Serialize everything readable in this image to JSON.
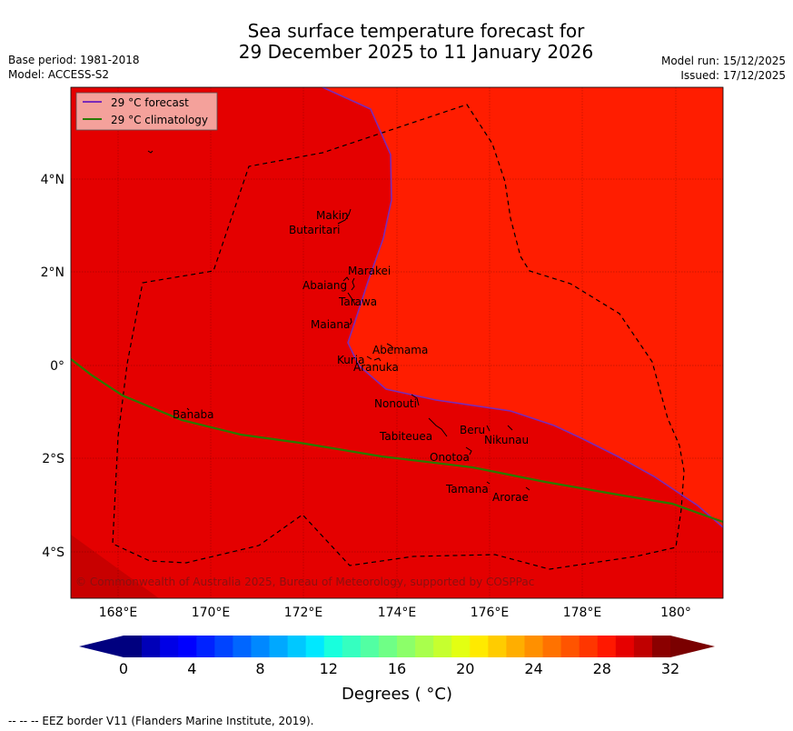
{
  "title": {
    "line1": "Sea surface temperature forecast for",
    "line2": "29 December 2025 to 11 January 2026"
  },
  "meta": {
    "base_period": "Base period: 1981-2018",
    "model": "Model: ACCESS-S2",
    "model_run": "Model run: 15/12/2025",
    "issued": "Issued: 17/12/2025"
  },
  "map": {
    "lon_ticks": [
      "168°E",
      "170°E",
      "172°E",
      "174°E",
      "176°E",
      "178°E",
      "180°"
    ],
    "lat_ticks": [
      "4°N",
      "2°N",
      "0°",
      "2°S",
      "4°S"
    ],
    "legend": {
      "forecast": "29 °C  forecast",
      "climatology": "29 °C  climatology"
    },
    "legend_colors": {
      "forecast": "#7a2bb8",
      "climatology": "#2a7a00"
    },
    "copyright": "© Commonwealth of Australia 2025, Bureau of Meteorology, supported by COSPPac",
    "islands": {
      "makin": "Makin",
      "butaritari": "Butaritari",
      "marakei": "Marakei",
      "abaiang": "Abaiang",
      "tarawa": "Tarawa",
      "maiana": "Maiana",
      "abemama": "Abemama",
      "kuria": "Kuria",
      "aranuka": "Aranuka",
      "nonouti": "Nonouti",
      "banaba": "Banaba",
      "beru": "Beru",
      "tabiteuea": "Tabiteuea",
      "nikunau": "Nikunau",
      "onotoa": "Onotoa",
      "tamana": "Tamana",
      "arorae": "Arorae"
    }
  },
  "colorbar": {
    "ticks": [
      "0",
      "4",
      "8",
      "12",
      "16",
      "20",
      "24",
      "28",
      "32"
    ],
    "label": "Degrees ( °C)",
    "colors": [
      "#00007f",
      "#0000b8",
      "#0000e6",
      "#0000ff",
      "#0022ff",
      "#0044ff",
      "#0066ff",
      "#0088ff",
      "#00a8ff",
      "#00c8ff",
      "#00e8ff",
      "#18ffdd",
      "#35ffc0",
      "#52ffa3",
      "#6fff86",
      "#8cff69",
      "#a9ff4c",
      "#c6ff2f",
      "#e3ff12",
      "#ffea00",
      "#ffcc00",
      "#ffae00",
      "#ff9000",
      "#ff7200",
      "#ff5400",
      "#ff3600",
      "#ff1800",
      "#e60000",
      "#c00000",
      "#8b0000"
    ],
    "under_color": "#00007f",
    "over_color": "#7a0000"
  },
  "footer": {
    "eez_note": "--  --  -- EEZ border V11 (Flanders Marine Institute, 2019)."
  }
}
